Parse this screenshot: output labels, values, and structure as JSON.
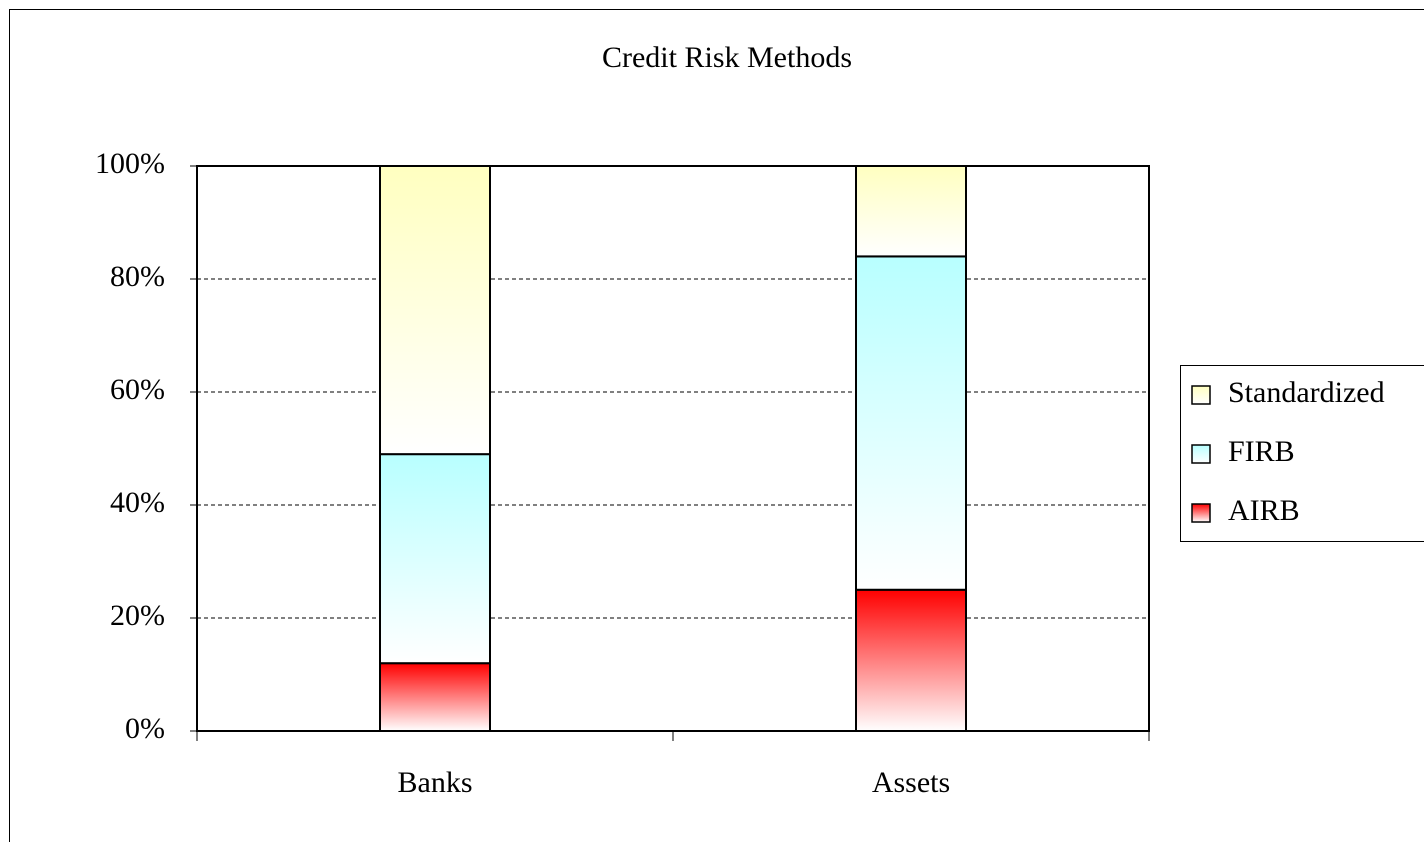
{
  "chart_data": {
    "type": "stacked_bar",
    "title": "Credit Risk Methods",
    "categories": [
      "Banks",
      "Assets"
    ],
    "series": [
      {
        "name": "AIRB",
        "color": "#ff0000",
        "values": [
          12,
          25
        ]
      },
      {
        "name": "FIRB",
        "color": "#b8ffff",
        "values": [
          37,
          59
        ]
      },
      {
        "name": "Standardized",
        "color": "#ffffc0",
        "values": [
          51,
          16
        ]
      }
    ],
    "ylim": [
      0,
      100
    ],
    "yticks": [
      {
        "value": 0,
        "label": "0%"
      },
      {
        "value": 20,
        "label": "20%"
      },
      {
        "value": 40,
        "label": "40%"
      },
      {
        "value": 60,
        "label": "60%"
      },
      {
        "value": 80,
        "label": "80%"
      },
      {
        "value": 100,
        "label": "100%"
      }
    ],
    "grid": true,
    "legend": "right"
  }
}
